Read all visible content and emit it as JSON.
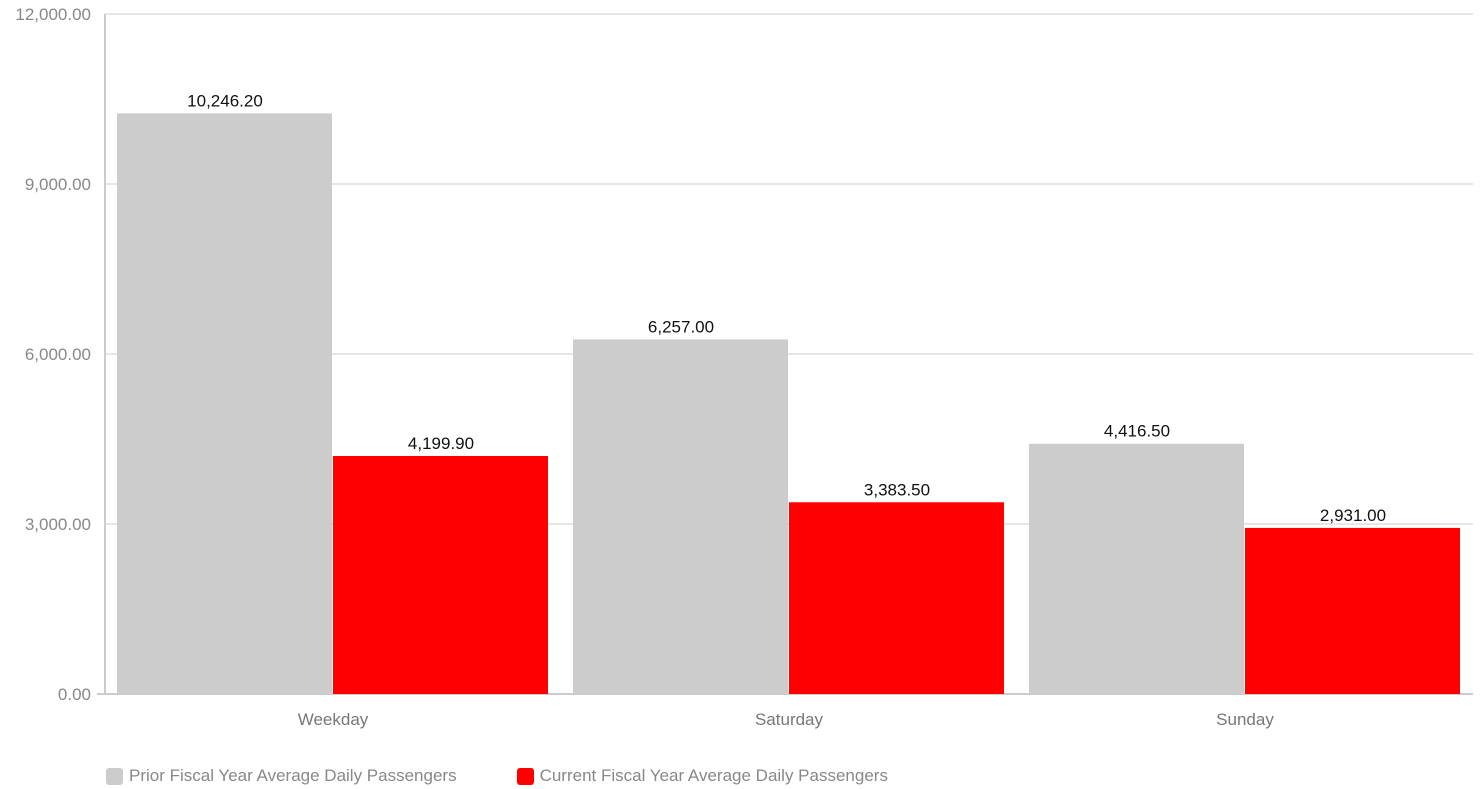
{
  "chart_data": {
    "type": "bar",
    "categories": [
      "Weekday",
      "Saturday",
      "Sunday"
    ],
    "series": [
      {
        "name": "Prior Fiscal Year Average Daily Passengers",
        "color": "#cccccc",
        "values": [
          10246.2,
          6257.0,
          4416.5
        ],
        "labels": [
          "10,246.20",
          "6,257.00",
          "4,416.50"
        ]
      },
      {
        "name": "Current Fiscal Year Average Daily Passengers",
        "color": "#ff0000",
        "values": [
          4199.9,
          3383.5,
          2931.0
        ],
        "labels": [
          "4,199.90",
          "3,383.50",
          "2,931.00"
        ]
      }
    ],
    "yticks": [
      0,
      3000,
      6000,
      9000,
      12000
    ],
    "ytick_labels": [
      "0.00",
      "3,000.00",
      "6,000.00",
      "9,000.00",
      "12,000.00"
    ],
    "ylim": [
      0,
      12000
    ],
    "grid": true,
    "legend_position": "bottom-left",
    "title": "",
    "xlabel": "",
    "ylabel": ""
  }
}
